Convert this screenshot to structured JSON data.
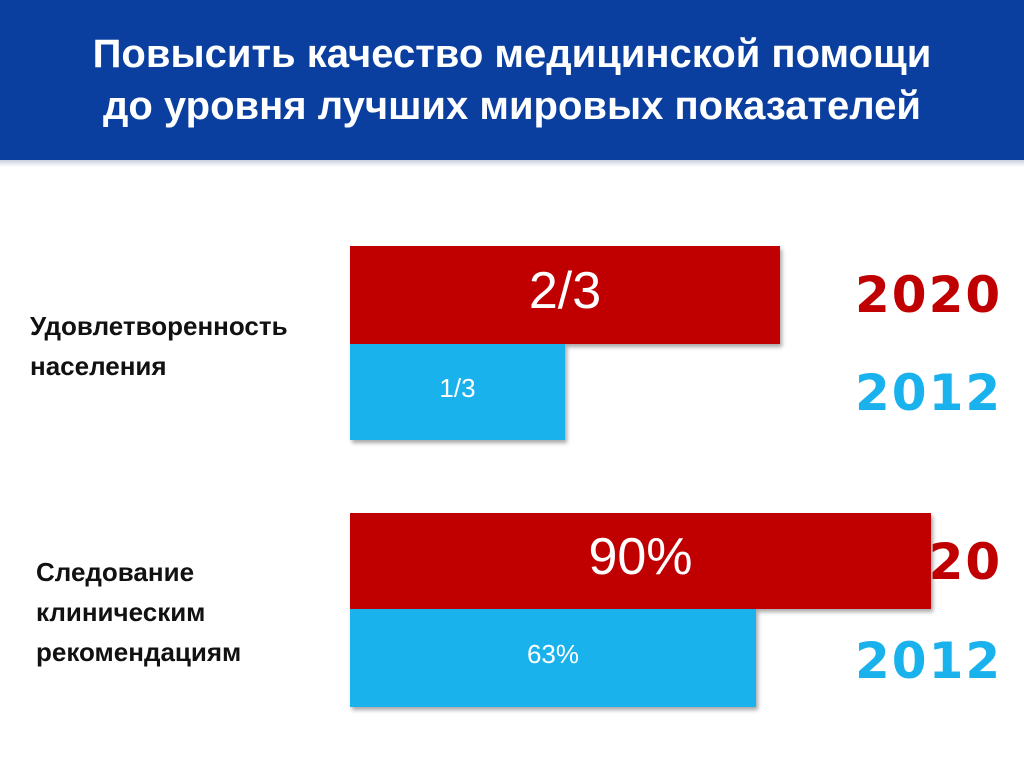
{
  "header": {
    "title_line1": "Повысить качество медицинской помощи",
    "title_line2": "до уровня лучших мировых показателей",
    "background_color": "#0a3fa0"
  },
  "chart_data": {
    "type": "bar",
    "orientation": "horizontal",
    "grid": false,
    "groups": [
      {
        "label_lines": [
          "Удовлетворенность",
          "населения"
        ],
        "bars": [
          {
            "year": "2020",
            "value": 0.6667,
            "label": "2/3",
            "color": "#c00000"
          },
          {
            "year": "2012",
            "value": 0.3333,
            "label": "1/3",
            "color": "#1ab2ec"
          }
        ]
      },
      {
        "label_lines": [
          "Следование",
          "клиническим",
          "рекомендациям"
        ],
        "bars": [
          {
            "year": "2020",
            "value": 0.9,
            "label": "90%",
            "color": "#c00000"
          },
          {
            "year": "2012",
            "value": 0.63,
            "label": "63%",
            "color": "#1ab2ec"
          }
        ]
      }
    ]
  }
}
